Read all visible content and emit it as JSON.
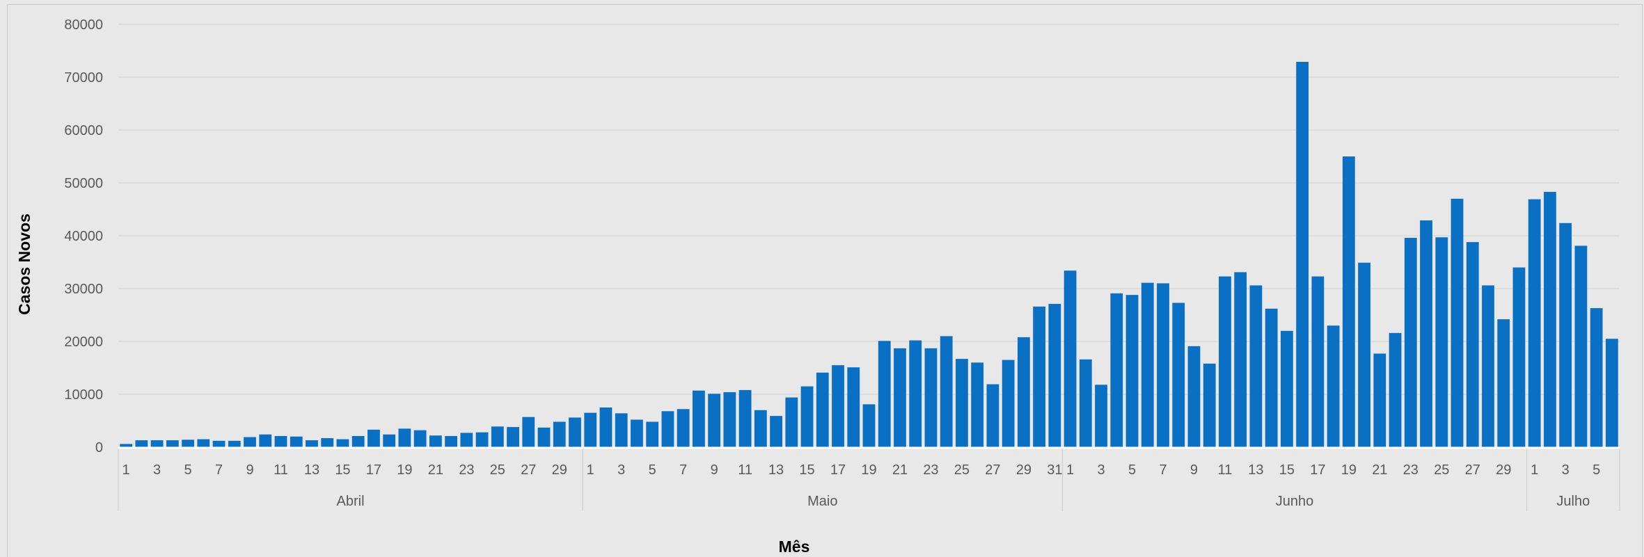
{
  "colors": {
    "bar": "#0a70c4",
    "grid": "#d6d6d6",
    "background": "#e8e8e8"
  },
  "chart_data": {
    "type": "bar",
    "xlabel": "Mês",
    "ylabel": "Casos Novos",
    "ylim": [
      0,
      80000
    ],
    "yticks": [
      "0",
      "10000",
      "20000",
      "30000",
      "40000",
      "50000",
      "60000",
      "70000",
      "80000"
    ],
    "grid": true,
    "legend": "none",
    "months": [
      {
        "name": "Abril",
        "days": [
          1,
          2,
          3,
          4,
          5,
          6,
          7,
          8,
          9,
          10,
          11,
          12,
          13,
          14,
          15,
          16,
          17,
          18,
          19,
          20,
          21,
          22,
          23,
          24,
          25,
          26,
          27,
          28,
          29,
          30
        ],
        "values": [
          600,
          1300,
          1300,
          1300,
          1400,
          1500,
          1200,
          1200,
          1900,
          2400,
          2100,
          2000,
          1300,
          1700,
          1500,
          2100,
          3300,
          2400,
          3500,
          3200,
          2200,
          2100,
          2700,
          2800,
          3900,
          3800,
          5700,
          3700,
          4800,
          5600
        ]
      },
      {
        "name": "Maio",
        "days": [
          1,
          2,
          3,
          4,
          5,
          6,
          7,
          8,
          9,
          10,
          11,
          12,
          13,
          14,
          15,
          16,
          17,
          18,
          19,
          20,
          21,
          22,
          23,
          24,
          25,
          26,
          27,
          28,
          29,
          30,
          31
        ],
        "values": [
          6500,
          7500,
          6400,
          5200,
          4800,
          6800,
          7200,
          10700,
          10100,
          10400,
          10800,
          7000,
          5900,
          9400,
          11500,
          14100,
          15500,
          15100,
          8100,
          20100,
          18700,
          20200,
          18700,
          21000,
          16700,
          16000,
          11900,
          16500,
          20800,
          26600,
          27100
        ]
      },
      {
        "name": "Junho",
        "days": [
          1,
          2,
          3,
          4,
          5,
          6,
          7,
          8,
          9,
          10,
          11,
          12,
          13,
          14,
          15,
          16,
          17,
          18,
          19,
          20,
          21,
          22,
          23,
          24,
          25,
          26,
          27,
          28,
          29,
          30
        ],
        "values": [
          33400,
          16600,
          11800,
          29100,
          28800,
          31100,
          31000,
          27300,
          19100,
          15800,
          32300,
          33100,
          30600,
          26200,
          22000,
          72900,
          32300,
          23000,
          55000,
          34900,
          17700,
          21600,
          39600,
          42900,
          39700,
          47000,
          38800,
          30600,
          24200,
          34000
        ]
      },
      {
        "name": "Julho",
        "days": [
          1,
          2,
          3,
          4,
          5,
          6
        ],
        "values": [
          46900,
          48300,
          42400,
          38100,
          26300,
          20500
        ]
      }
    ]
  }
}
